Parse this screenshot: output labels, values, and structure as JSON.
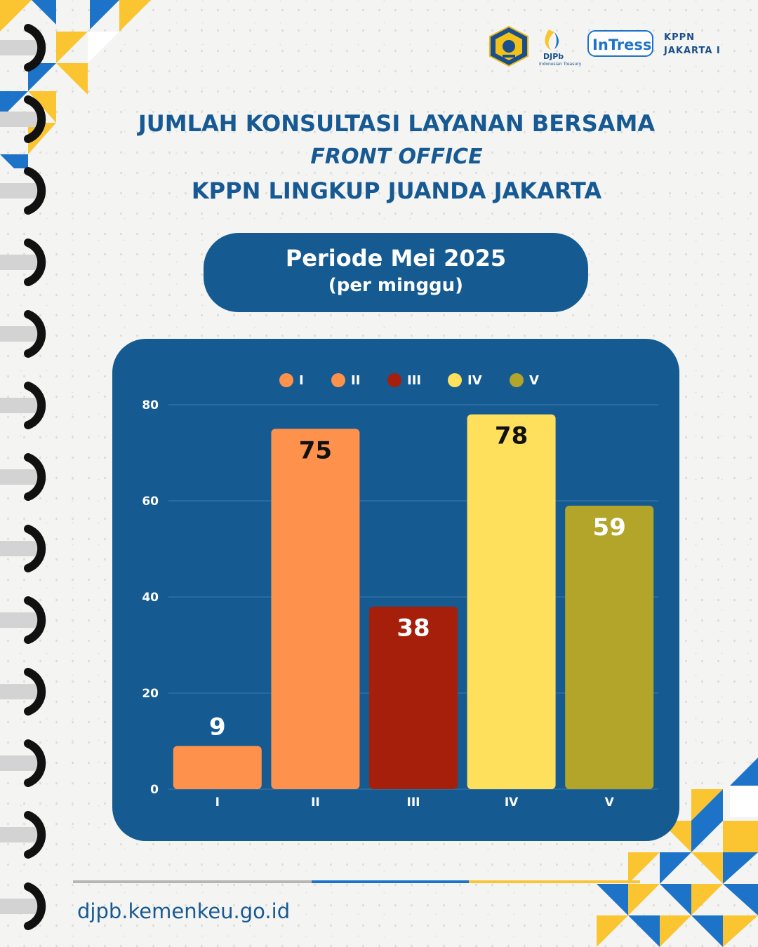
{
  "logos": {
    "djpb_label": "DJPb",
    "djpb_sub": "Indonesian Treasury",
    "intress_label": "InTress",
    "kppn_line1": "KPPN",
    "kppn_line2": "JAKARTA I"
  },
  "title": {
    "line1": "JUMLAH KONSULTASI LAYANAN BERSAMA",
    "line2": "FRONT OFFICE",
    "line3": "KPPN LINGKUP JUANDA JAKARTA"
  },
  "period": {
    "line1": "Periode Mei 2025",
    "line2": "(per minggu)"
  },
  "footer": {
    "url": "djpb.kemenkeu.go.id"
  },
  "colors": {
    "navy": "#155b91",
    "bar_I": "#fe914c",
    "bar_II": "#fe914c",
    "bar_III": "#a61f0b",
    "bar_IV": "#ffe05d",
    "bar_V": "#b3a42a"
  },
  "chart_data": {
    "type": "bar",
    "categories": [
      "I",
      "II",
      "III",
      "IV",
      "V"
    ],
    "values": [
      9,
      75,
      38,
      78,
      59
    ],
    "colors": [
      "#fe914c",
      "#fe914c",
      "#a61f0b",
      "#ffe05d",
      "#b3a42a"
    ],
    "label_colors": [
      "#ffffff",
      "#111111",
      "#ffffff",
      "#111111",
      "#ffffff"
    ],
    "legend": [
      "I",
      "II",
      "III",
      "IV",
      "V"
    ],
    "legend_position": "top",
    "ylim": [
      0,
      80
    ],
    "yticks": [
      0,
      20,
      40,
      60,
      80
    ],
    "grid": true
  }
}
